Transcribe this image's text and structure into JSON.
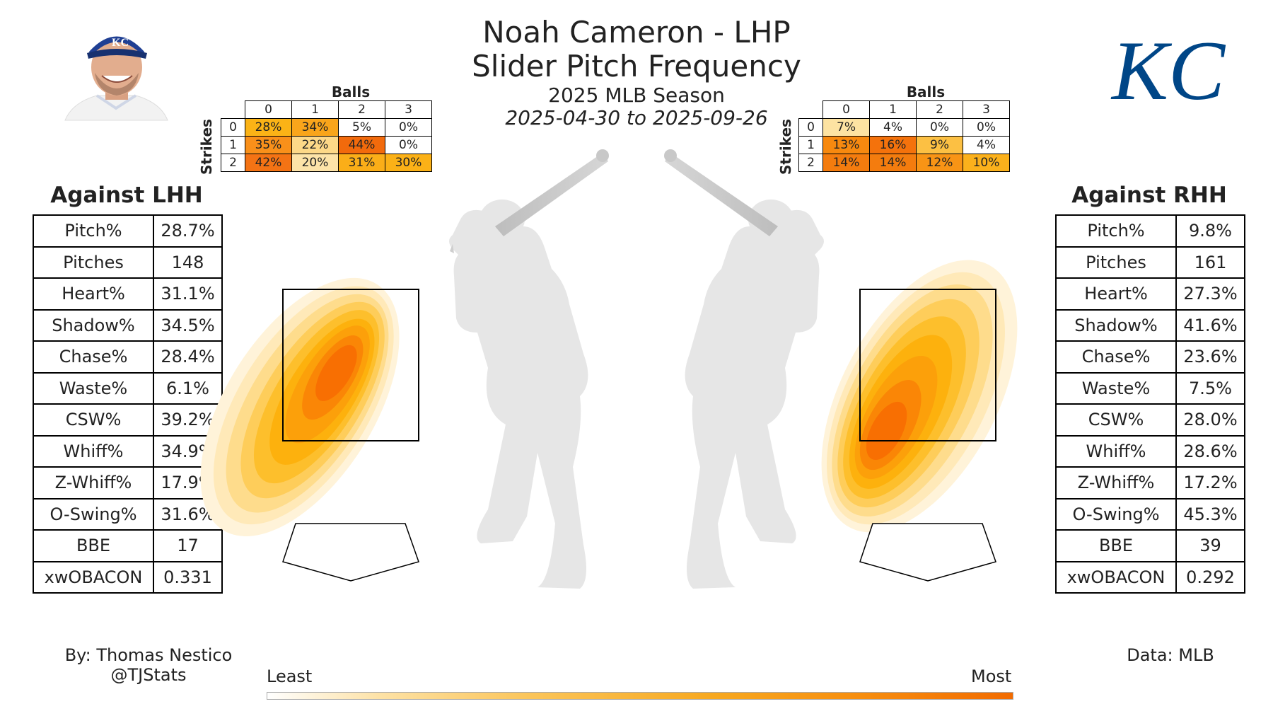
{
  "title": {
    "player": "Noah Cameron - LHP",
    "pitch": "Slider Pitch Frequency",
    "season": "2025 MLB Season",
    "dates": "2025-04-30 to 2025-09-26"
  },
  "count_tables": {
    "balls_label": "Balls",
    "strikes_label": "Strikes",
    "balls": [
      "0",
      "1",
      "2",
      "3"
    ],
    "strikes": [
      "0",
      "1",
      "2"
    ],
    "vs_lhh": [
      [
        {
          "t": "28%",
          "c": "#fbb316"
        },
        {
          "t": "34%",
          "c": "#f9a51b"
        },
        {
          "t": "5%",
          "c": "#ffffff"
        },
        {
          "t": "0%",
          "c": "#ffffff"
        }
      ],
      [
        {
          "t": "35%",
          "c": "#f9901a"
        },
        {
          "t": "22%",
          "c": "#fdd888"
        },
        {
          "t": "44%",
          "c": "#f26a0c"
        },
        {
          "t": "0%",
          "c": "#ffffff"
        }
      ],
      [
        {
          "t": "42%",
          "c": "#f47314"
        },
        {
          "t": "20%",
          "c": "#fde3a8"
        },
        {
          "t": "31%",
          "c": "#fbae18"
        },
        {
          "t": "30%",
          "c": "#fbb117"
        }
      ]
    ],
    "vs_rhh": [
      [
        {
          "t": "7%",
          "c": "#fde3a2"
        },
        {
          "t": "4%",
          "c": "#ffffff"
        },
        {
          "t": "0%",
          "c": "#ffffff"
        },
        {
          "t": "0%",
          "c": "#ffffff"
        }
      ],
      [
        {
          "t": "13%",
          "c": "#f7890f"
        },
        {
          "t": "16%",
          "c": "#f4720c"
        },
        {
          "t": "9%",
          "c": "#fcc043"
        },
        {
          "t": "4%",
          "c": "#ffffff"
        }
      ],
      [
        {
          "t": "14%",
          "c": "#f47c0e"
        },
        {
          "t": "14%",
          "c": "#f47c0e"
        },
        {
          "t": "12%",
          "c": "#f89415"
        },
        {
          "t": "10%",
          "c": "#fbb11c"
        }
      ]
    ]
  },
  "lhh": {
    "title": "Against LHH",
    "rows": [
      {
        "label": "Pitch%",
        "value": "28.7%"
      },
      {
        "label": "Pitches",
        "value": "148"
      },
      {
        "label": "Heart%",
        "value": "31.1%"
      },
      {
        "label": "Shadow%",
        "value": "34.5%"
      },
      {
        "label": "Chase%",
        "value": "28.4%"
      },
      {
        "label": "Waste%",
        "value": "6.1%"
      },
      {
        "label": "CSW%",
        "value": "39.2%"
      },
      {
        "label": "Whiff%",
        "value": "34.9%"
      },
      {
        "label": "Z-Whiff%",
        "value": "17.9%"
      },
      {
        "label": "O-Swing%",
        "value": "31.6%"
      },
      {
        "label": "BBE",
        "value": "17"
      },
      {
        "label": "xwOBACON",
        "value": "0.331"
      }
    ]
  },
  "rhh": {
    "title": "Against RHH",
    "rows": [
      {
        "label": "Pitch%",
        "value": "9.8%"
      },
      {
        "label": "Pitches",
        "value": "161"
      },
      {
        "label": "Heart%",
        "value": "27.3%"
      },
      {
        "label": "Shadow%",
        "value": "41.6%"
      },
      {
        "label": "Chase%",
        "value": "23.6%"
      },
      {
        "label": "Waste%",
        "value": "7.5%"
      },
      {
        "label": "CSW%",
        "value": "28.0%"
      },
      {
        "label": "Whiff%",
        "value": "28.6%"
      },
      {
        "label": "Z-Whiff%",
        "value": "17.2%"
      },
      {
        "label": "O-Swing%",
        "value": "45.3%"
      },
      {
        "label": "BBE",
        "value": "39"
      },
      {
        "label": "xwOBACON",
        "value": "0.292"
      }
    ]
  },
  "footer": {
    "author": "By: Thomas Nestico",
    "handle": "@TJStats",
    "source": "Data: MLB",
    "legend_least": "Least",
    "legend_most": "Most"
  },
  "logo_text": "KC",
  "colors": {
    "heat_low": "#fff3d6",
    "heat_mid": "#ffb100",
    "heat_high": "#ff6a00",
    "silhouette": "#e3e3e3",
    "bat": "#c8c8c8",
    "royals_blue": "#004687"
  },
  "chart_data": {
    "type": "heatmap",
    "icons": [
      "player-headshot",
      "royals-logo",
      "batter-silhouette-left",
      "batter-silhouette-right",
      "strike-zone",
      "home-plate"
    ],
    "lhh_density": {
      "peak": "middle-left of zone",
      "shape": "diagonal ellipse, upper-right to lower-left"
    },
    "rhh_density": {
      "peak": "lower-middle of zone",
      "shape": "diagonal ellipse, upper-right to lower-left"
    }
  }
}
